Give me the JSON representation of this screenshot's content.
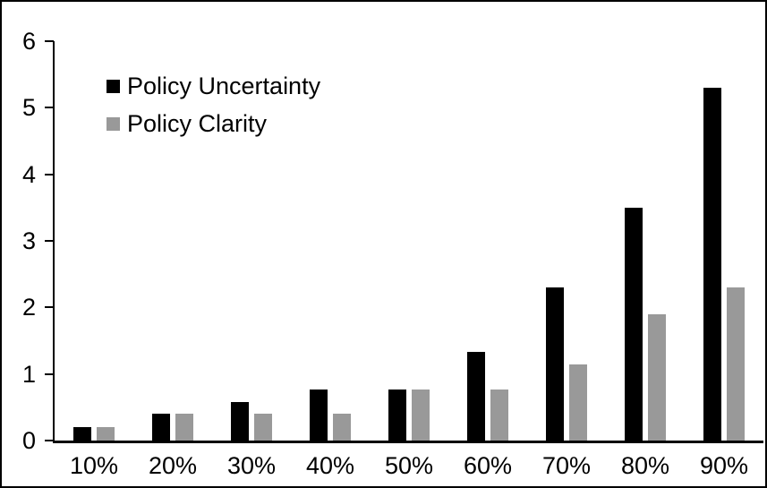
{
  "chart_data": {
    "type": "bar",
    "title": "",
    "xlabel": "",
    "ylabel": "",
    "categories": [
      "10%",
      "20%",
      "30%",
      "40%",
      "50%",
      "60%",
      "70%",
      "80%",
      "90%"
    ],
    "series": [
      {
        "name": "Policy Uncertainty",
        "color": "#000000",
        "values": [
          0.2,
          0.4,
          0.58,
          0.77,
          0.77,
          1.33,
          2.3,
          3.5,
          5.3
        ]
      },
      {
        "name": "Policy Clarity",
        "color": "#999999",
        "values": [
          0.2,
          0.4,
          0.4,
          0.4,
          0.77,
          0.77,
          1.15,
          1.9,
          2.3
        ]
      }
    ],
    "ylim": [
      0,
      6
    ],
    "yticks": [
      "0",
      "1",
      "2",
      "3",
      "4",
      "5",
      "6"
    ],
    "grid": false,
    "legend_position": "top-left-inside",
    "frame_color": "#000000",
    "background_color": "#ffffff"
  }
}
